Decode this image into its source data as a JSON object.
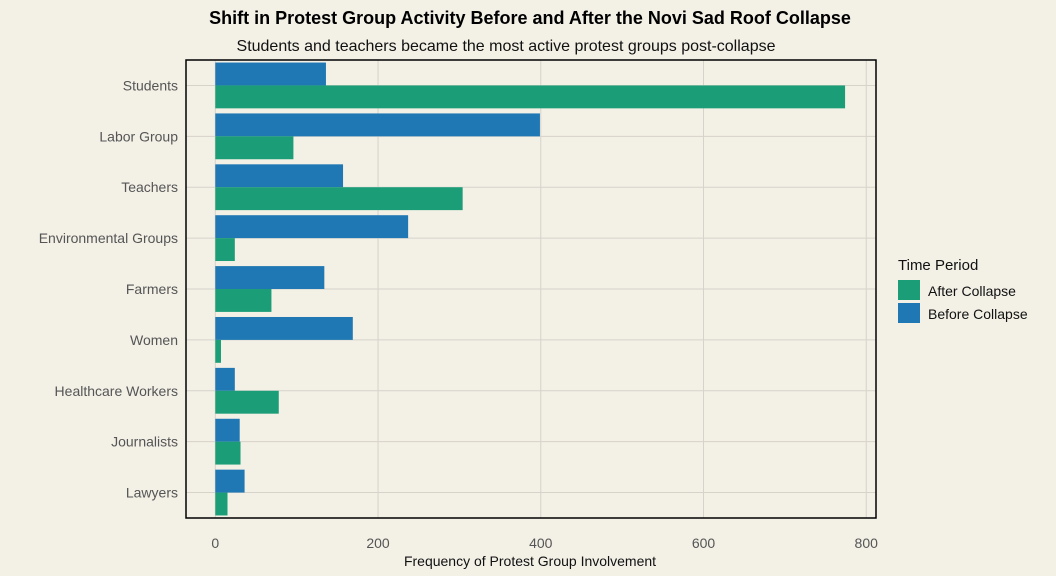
{
  "chart_data": {
    "type": "bar",
    "orientation": "horizontal",
    "title": "Shift in Protest Group Activity Before and After the Novi Sad Roof Collapse",
    "subtitle": "Students and teachers became the most active protest groups post-collapse",
    "xlabel": "Frequency of Protest Group Involvement",
    "ylabel": "",
    "xlim": [
      -36,
      812
    ],
    "xticks": [
      0,
      200,
      400,
      600,
      800
    ],
    "grid": true,
    "legend_position": "right",
    "legend_title": "Time Period",
    "categories": [
      "Students",
      "Labor Group",
      "Teachers",
      "Environmental Groups",
      "Farmers",
      "Women",
      "Healthcare Workers",
      "Journalists",
      "Lawyers"
    ],
    "series": [
      {
        "name": "After Collapse",
        "color": "#1b9e77",
        "values": [
          774,
          96,
          304,
          24,
          69,
          7,
          78,
          31,
          15
        ]
      },
      {
        "name": "Before Collapse",
        "color": "#1f78b4",
        "values": [
          136,
          399,
          157,
          237,
          134,
          169,
          24,
          30,
          36
        ]
      }
    ]
  }
}
